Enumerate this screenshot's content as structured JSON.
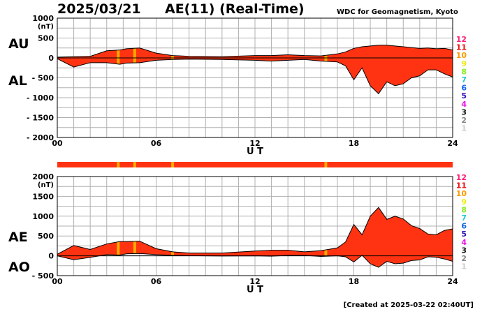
{
  "header": {
    "date": "2025/03/21",
    "title": "AE(11) (Real-Time)",
    "source": "WDC for Geomagnetism, Kyoto"
  },
  "footer": {
    "created": "[Created at 2025-03-22 02:40UT]"
  },
  "chart_data": [
    {
      "type": "area",
      "panel": "AU-AL",
      "labels": [
        "AU",
        "AL"
      ],
      "xlabel": "U T",
      "xlim": [
        0,
        24
      ],
      "xticks": [
        "00",
        "06",
        "12",
        "18",
        "24"
      ],
      "ylim": [
        -2000,
        1000
      ],
      "yticks": [
        "1000",
        "500",
        "0",
        "- 500",
        "- 1000",
        "- 1500",
        "- 2000"
      ],
      "yunit": "(nT)",
      "grid": true,
      "colors": {
        "fill": "#ff3311",
        "line": "#000000",
        "missing": "#ffaa00"
      },
      "x": [
        0,
        1,
        2,
        3,
        3.8,
        4.2,
        5,
        6,
        7,
        8,
        10,
        12,
        13,
        14,
        15,
        16,
        17,
        17.5,
        18,
        18.5,
        19,
        19.5,
        20,
        20.5,
        21,
        21.5,
        22,
        22.5,
        23,
        23.5,
        24
      ],
      "AU": [
        20,
        30,
        40,
        180,
        200,
        230,
        250,
        120,
        60,
        40,
        30,
        60,
        60,
        80,
        60,
        50,
        100,
        150,
        240,
        280,
        300,
        320,
        320,
        300,
        280,
        260,
        240,
        250,
        230,
        240,
        200
      ],
      "AL": [
        -20,
        -230,
        -120,
        -120,
        -160,
        -130,
        -120,
        -60,
        -40,
        -30,
        -40,
        -60,
        -80,
        -60,
        -40,
        -80,
        -100,
        -200,
        -550,
        -250,
        -700,
        -900,
        -600,
        -700,
        -650,
        -500,
        -450,
        -300,
        -300,
        -400,
        -480
      ]
    },
    {
      "type": "area",
      "panel": "AE-AO",
      "labels": [
        "AE",
        "AO"
      ],
      "xlabel": "U T",
      "xlim": [
        0,
        24
      ],
      "xticks": [
        "00",
        "06",
        "12",
        "18",
        "24"
      ],
      "ylim": [
        -500,
        2000
      ],
      "yticks": [
        "2000",
        "1500",
        "1000",
        "500",
        "0",
        "- 500"
      ],
      "yunit": "(nT)",
      "grid": true,
      "colors": {
        "fill": "#ff3311",
        "line": "#000000",
        "missing": "#ffaa00"
      },
      "x": [
        0,
        1,
        2,
        3,
        3.8,
        4.2,
        5,
        6,
        7,
        8,
        10,
        12,
        13,
        14,
        15,
        16,
        17,
        17.5,
        18,
        18.5,
        19,
        19.5,
        20,
        20.5,
        21,
        21.5,
        22,
        22.5,
        23,
        23.5,
        24
      ],
      "AE": [
        40,
        260,
        160,
        300,
        360,
        360,
        370,
        180,
        100,
        70,
        70,
        120,
        140,
        140,
        100,
        130,
        200,
        350,
        790,
        530,
        1000,
        1220,
        920,
        1000,
        930,
        760,
        690,
        550,
        530,
        640,
        680
      ],
      "AO": [
        0,
        -100,
        -40,
        30,
        20,
        50,
        60,
        30,
        10,
        5,
        -5,
        0,
        -10,
        10,
        10,
        -15,
        0,
        -25,
        -155,
        15,
        -200,
        -290,
        -140,
        -200,
        -185,
        -120,
        -105,
        -25,
        -35,
        -80,
        -140
      ]
    }
  ],
  "status_bar": {
    "missing_hours": [
      3.7,
      4.7,
      7.0,
      16.3
    ],
    "colors": {
      "bar": "#ff3311",
      "missing": "#ffaa00"
    }
  },
  "station_legend": {
    "items": [
      {
        "label": "12",
        "color": "#ff2277"
      },
      {
        "label": "11",
        "color": "#ee1111"
      },
      {
        "label": "10",
        "color": "#ff9900"
      },
      {
        "label": "9",
        "color": "#eeee11"
      },
      {
        "label": "8",
        "color": "#88ee22"
      },
      {
        "label": "7",
        "color": "#22cccc"
      },
      {
        "label": "6",
        "color": "#1166ee"
      },
      {
        "label": "5",
        "color": "#3311bb"
      },
      {
        "label": "4",
        "color": "#ee11ee"
      },
      {
        "label": "3",
        "color": "#111111"
      },
      {
        "label": "2",
        "color": "#888888"
      },
      {
        "label": "1",
        "color": "#cccccc"
      }
    ]
  }
}
